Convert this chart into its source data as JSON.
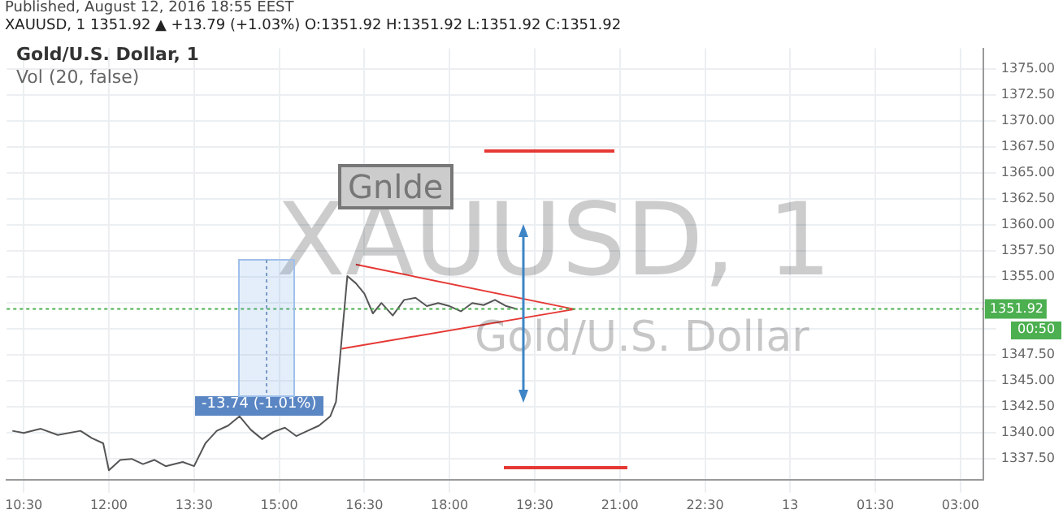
{
  "chart_data": {
    "type": "line",
    "annotations": [
      "Published, August 12, 2016 18:55 EEST",
      "XAUUSD, 1 1351.92 ▲ +13.79 (+1.03%) O:1351.92 H:1351.92 L:1351.92 C:1351.92",
      "Gold/U.S. Dollar, 1",
      "Vol (20, false)",
      "XAUUSD, 1",
      "Gold/U.S. Dollar",
      "Gnlde",
      "-13.74 (-1.01%)",
      "00:50"
    ],
    "x": [
      "2016-08-12T10:18",
      "2016-08-12T10:30",
      "2016-08-12T10:48",
      "2016-08-12T11:06",
      "2016-08-12T11:30",
      "2016-08-12T11:42",
      "2016-08-12T11:54",
      "2016-08-12T12:00",
      "2016-08-12T12:12",
      "2016-08-12T12:24",
      "2016-08-12T12:36",
      "2016-08-12T12:48",
      "2016-08-12T13:00",
      "2016-08-12T13:18",
      "2016-08-12T13:30",
      "2016-08-12T13:42",
      "2016-08-12T13:54",
      "2016-08-12T14:06",
      "2016-08-12T14:18",
      "2016-08-12T14:30",
      "2016-08-12T14:42",
      "2016-08-12T14:54",
      "2016-08-12T15:06",
      "2016-08-12T15:18",
      "2016-08-12T15:30",
      "2016-08-12T15:42",
      "2016-08-12T15:54",
      "2016-08-12T16:00",
      "2016-08-12T16:06",
      "2016-08-12T16:12",
      "2016-08-12T16:21",
      "2016-08-12T16:30",
      "2016-08-12T16:39",
      "2016-08-12T16:48",
      "2016-08-12T17:00",
      "2016-08-12T17:12",
      "2016-08-12T17:24",
      "2016-08-12T17:36",
      "2016-08-12T17:48",
      "2016-08-12T18:00",
      "2016-08-12T18:12",
      "2016-08-12T18:24",
      "2016-08-12T18:36",
      "2016-08-12T18:48",
      "2016-08-12T19:00",
      "2016-08-12T19:12"
    ],
    "series": [
      {
        "color": "#555555",
        "values": [
          1340.2,
          1340.0,
          1340.4,
          1339.8,
          1340.2,
          1339.5,
          1339.0,
          1336.4,
          1337.4,
          1337.5,
          1337.0,
          1337.4,
          1336.8,
          1337.2,
          1336.8,
          1339.0,
          1340.2,
          1340.7,
          1341.6,
          1340.3,
          1339.4,
          1340.1,
          1340.5,
          1339.7,
          1340.2,
          1340.7,
          1341.6,
          1343.0,
          1349.0,
          1355.1,
          1354.4,
          1353.4,
          1351.5,
          1352.5,
          1351.3,
          1352.8,
          1353.0,
          1352.2,
          1352.5,
          1352.2,
          1351.7,
          1352.5,
          1352.3,
          1352.8,
          1352.2,
          1351.9
        ]
      },
      {
        "color": "#e53935",
        "x": [
          "2016-08-12T16:21",
          "2016-08-12T20:12"
        ],
        "values": [
          1356.2,
          1351.9
        ]
      },
      {
        "color": "#e53935",
        "x": [
          "2016-08-12T16:06",
          "2016-08-12T20:12"
        ],
        "values": [
          1348.1,
          1351.9
        ]
      }
    ],
    "xlim": [
      "2016-08-12T10:12",
      "2016-08-13T03:24"
    ],
    "xticks": [
      {
        "value": "2016-08-12T10:30",
        "label": "10:30"
      },
      {
        "value": "2016-08-12T12:00",
        "label": "12:00"
      },
      {
        "value": "2016-08-12T13:30",
        "label": "13:30"
      },
      {
        "value": "2016-08-12T15:00",
        "label": "15:00"
      },
      {
        "value": "2016-08-12T16:30",
        "label": "16:30"
      },
      {
        "value": "2016-08-12T18:00",
        "label": "18:00"
      },
      {
        "value": "2016-08-12T19:30",
        "label": "19:30"
      },
      {
        "value": "2016-08-12T21:00",
        "label": "21:00"
      },
      {
        "value": "2016-08-12T22:30",
        "label": "22:30"
      },
      {
        "value": "2016-08-13T00:00",
        "label": "13"
      },
      {
        "value": "2016-08-13T01:30",
        "label": "01:30"
      },
      {
        "value": "2016-08-13T03:00",
        "label": "03:00"
      }
    ],
    "ylim": [
      1335.5,
      1377
    ],
    "yticks": [
      {
        "value": 1337.5,
        "label": "1337.50"
      },
      {
        "value": 1340,
        "label": "1340.00"
      },
      {
        "value": 1342.5,
        "label": "1342.50"
      },
      {
        "value": 1345,
        "label": "1345.00"
      },
      {
        "value": 1347.5,
        "label": "1347.50"
      },
      {
        "value": 1350,
        "label": null
      },
      {
        "value": 1352.5,
        "label": null
      },
      {
        "value": 1355,
        "label": "1355.00"
      },
      {
        "value": 1357.5,
        "label": "1357.50"
      },
      {
        "value": 1360,
        "label": "1360.00"
      },
      {
        "value": 1362.5,
        "label": "1362.50"
      },
      {
        "value": 1365,
        "label": "1365.00"
      },
      {
        "value": 1367.5,
        "label": "1367.50"
      },
      {
        "value": 1370,
        "label": "1370.00"
      },
      {
        "value": 1372.5,
        "label": "1372.50"
      },
      {
        "value": 1375,
        "label": "1375.00"
      }
    ],
    "ref_lines": [
      {
        "axis": "y",
        "value": 1351.92,
        "label": "1351.92",
        "color": "#4caf50",
        "line_style": "dotted"
      }
    ],
    "grid": true,
    "legend": false,
    "marker": "none",
    "line_style": "solid"
  }
}
